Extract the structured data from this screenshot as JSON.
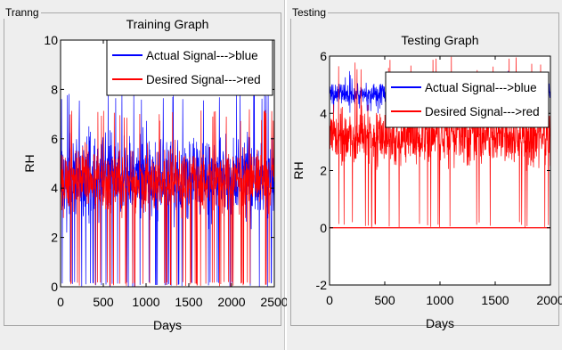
{
  "panels": {
    "train_group_title": "Tranng",
    "test_group_title": "Testing"
  },
  "chart_data": [
    {
      "type": "line",
      "title": "Training Graph",
      "xlabel": "Days",
      "ylabel": "RH",
      "xlim": [
        0,
        2500
      ],
      "ylim": [
        0,
        10
      ],
      "x_ticks": [
        0,
        500,
        1000,
        1500,
        2000,
        2500
      ],
      "x_tick_labels": [
        "0",
        "500",
        "1000",
        "1500",
        "2000",
        "2500"
      ],
      "y_ticks": [
        0,
        2,
        4,
        6,
        8,
        10
      ],
      "y_tick_labels": [
        "0",
        "2",
        "4",
        "6",
        "8",
        "10"
      ],
      "legend": {
        "placement": "top-right",
        "entries": [
          "Actual Signal--->blue",
          "Desired Signal--->red"
        ]
      },
      "series": [
        {
          "color": "#0000ff",
          "n": 2500,
          "mean": 4.5,
          "spread": 1.4,
          "min": 0,
          "max": 8
        },
        {
          "color": "#ff0000",
          "n": 2500,
          "mean": 4.3,
          "spread": 1.0,
          "min": 0,
          "max": 7.2
        }
      ]
    },
    {
      "type": "line",
      "title": "Testing Graph",
      "xlabel": "Days",
      "ylabel": "RH",
      "xlim": [
        0,
        2000
      ],
      "ylim": [
        -2,
        6
      ],
      "x_ticks": [
        0,
        500,
        1000,
        1500,
        2000
      ],
      "x_tick_labels": [
        "0",
        "500",
        "1000",
        "1500",
        "2000"
      ],
      "y_ticks": [
        -2,
        0,
        2,
        4,
        6
      ],
      "y_tick_labels": [
        "-2",
        "0",
        "2",
        "4",
        "6"
      ],
      "legend": {
        "placement": "top-right",
        "entries": [
          "Actual Signal--->blue",
          "Desired Signal--->red"
        ]
      },
      "series": [
        {
          "color": "#0000ff",
          "n": 2000,
          "mean": 4.7,
          "spread": 0.3,
          "min": 4.0,
          "max": 5.5
        },
        {
          "color": "#ff0000",
          "n": 2000,
          "mean": 3.2,
          "spread": 0.8,
          "min": 0,
          "max": 6
        }
      ],
      "reference_line": {
        "y": 0,
        "color": "#ff0000"
      }
    }
  ]
}
